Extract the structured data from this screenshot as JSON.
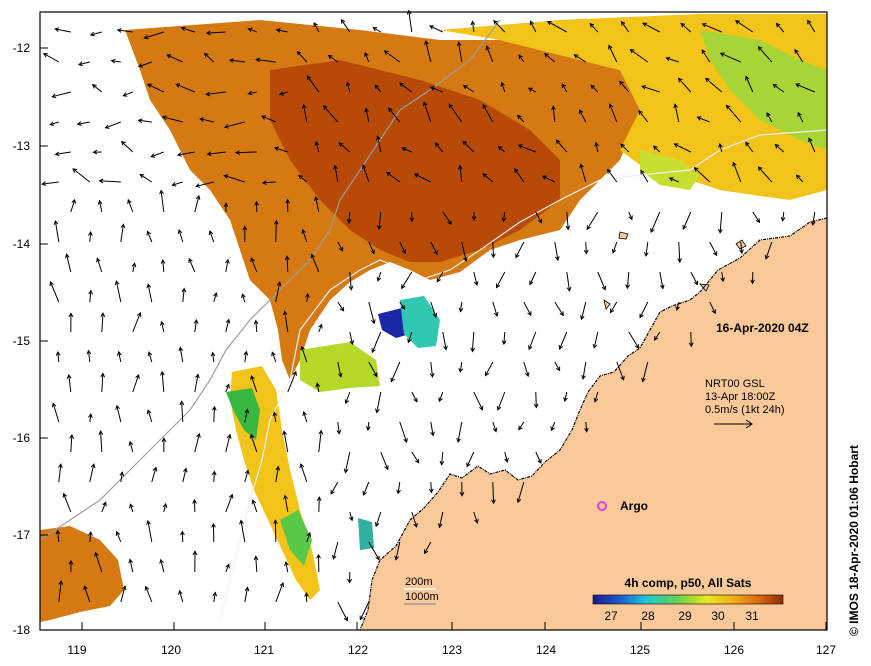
{
  "map": {
    "lon_ticks": [
      "119",
      "120",
      "121",
      "122",
      "123",
      "124",
      "125",
      "126",
      "127"
    ],
    "lat_ticks": [
      "-12",
      "-13",
      "-14",
      "-15",
      "-16",
      "-17",
      "-18"
    ],
    "date_label": "16-Apr-2020 04Z",
    "current_legend": {
      "line1": "NRT00 GSL",
      "line2": "13-Apr 18:00Z",
      "line3": "0.5m/s (1kt 24h)"
    },
    "argo_label": "Argo",
    "isobath_200": "200m",
    "isobath_1000": "1000m",
    "colorbar": {
      "title": "4h comp, p50, All Sats",
      "ticks": [
        "27",
        "28",
        "29",
        "30",
        "31"
      ]
    },
    "credit": "© IMOS 18-Apr-2020 01:06 Hobart",
    "colors": {
      "land": "#f9c99a",
      "sst_hot": "#b84a08",
      "sst_warm": "#d57a12",
      "sst_mid": "#f2c318",
      "sst_cool": "#7cd63a",
      "sst_cold": "#1a28a8",
      "argo": "#e040e0"
    }
  }
}
